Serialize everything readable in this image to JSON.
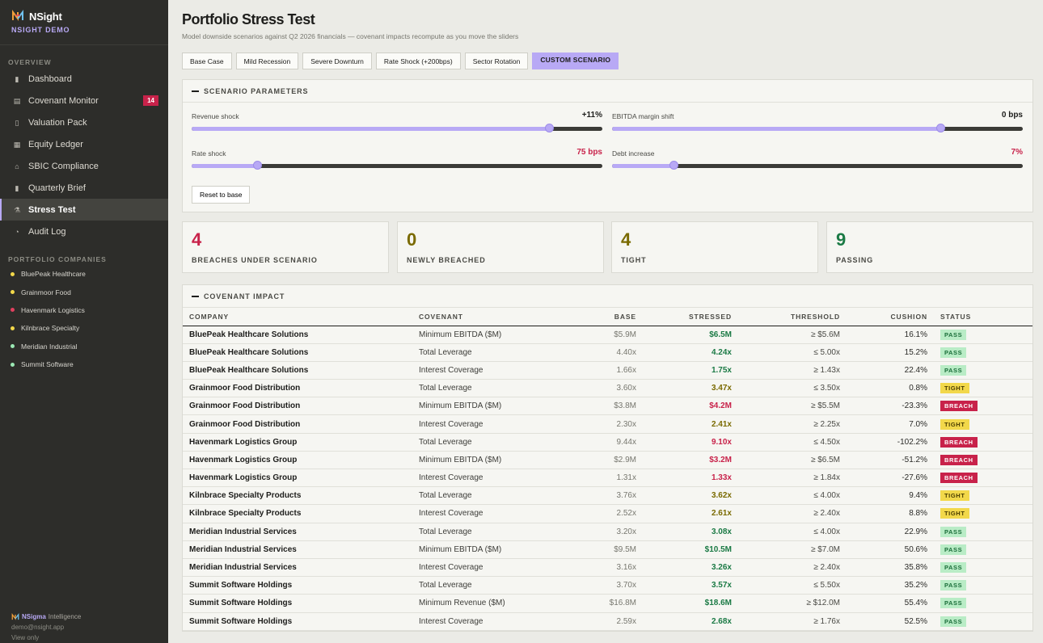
{
  "brand": {
    "name": "NSight",
    "sub": "NSIGHT DEMO"
  },
  "sidebar": {
    "overview_label": "OVERVIEW",
    "items": [
      {
        "label": "Dashboard",
        "icon": "chart-icon"
      },
      {
        "label": "Covenant Monitor",
        "icon": "document-icon",
        "badge": "14"
      },
      {
        "label": "Valuation Pack",
        "icon": "page-icon"
      },
      {
        "label": "Equity Ledger",
        "icon": "ledger-icon"
      },
      {
        "label": "SBIC Compliance",
        "icon": "bank-icon"
      },
      {
        "label": "Quarterly Brief",
        "icon": "book-icon"
      },
      {
        "label": "Stress Test",
        "icon": "flask-icon",
        "active": true
      },
      {
        "label": "Audit Log",
        "icon": "clock-icon"
      }
    ],
    "companies_label": "PORTFOLIO COMPANIES",
    "companies": [
      {
        "label": "BluePeak Healthcare",
        "color": "#f2d84a"
      },
      {
        "label": "Grainmoor Food",
        "color": "#f2d84a"
      },
      {
        "label": "Havenmark Logistics",
        "color": "#e0405e"
      },
      {
        "label": "Kilnbrace Specialty",
        "color": "#f2d84a"
      },
      {
        "label": "Meridian Industrial",
        "color": "#9be8b4"
      },
      {
        "label": "Summit Software",
        "color": "#9be8b4"
      }
    ],
    "footer": {
      "brand": "NSigma",
      "brand_rest": "Intelligence",
      "email": "demo@nsight.app",
      "mode": "View only"
    }
  },
  "header": {
    "title": "Portfolio Stress Test",
    "subtitle": "Model downside scenarios against Q2 2026 financials — covenant impacts recompute as you move the sliders"
  },
  "tabs": [
    "Base Case",
    "Mild Recession",
    "Severe Downturn",
    "Rate Shock (+200bps)",
    "Sector Rotation",
    "CUSTOM SCENARIO"
  ],
  "active_tab": 5,
  "params": {
    "title": "SCENARIO PARAMETERS",
    "sliders": [
      {
        "label": "Revenue shock",
        "value": "+11%",
        "fraction": 0.87,
        "value_color": "#1d1d1b"
      },
      {
        "label": "EBITDA margin shift",
        "value": "0 bps",
        "fraction": 0.8,
        "value_color": "#1d1d1b"
      },
      {
        "label": "Rate shock",
        "value": "75 bps",
        "fraction": 0.16,
        "value_color": "#c8224a"
      },
      {
        "label": "Debt increase",
        "value": "7%",
        "fraction": 0.15,
        "value_color": "#c8224a"
      }
    ],
    "reset_label": "Reset to base"
  },
  "stats": [
    {
      "value": "4",
      "label": "BREACHES UNDER SCENARIO",
      "color": "#c8224a"
    },
    {
      "value": "0",
      "label": "NEWLY BREACHED",
      "color": "#7a6a00"
    },
    {
      "value": "4",
      "label": "TIGHT",
      "color": "#7a6a00"
    },
    {
      "value": "9",
      "label": "PASSING",
      "color": "#1b7a45"
    }
  ],
  "impact": {
    "title": "COVENANT IMPACT",
    "columns": [
      "COMPANY",
      "COVENANT",
      "BASE",
      "STRESSED",
      "THRESHOLD",
      "CUSHION",
      "STATUS"
    ],
    "rows": [
      {
        "company": "BluePeak Healthcare Solutions",
        "covenant": "Minimum EBITDA ($M)",
        "base": "$5.9M",
        "stressed": "$6.5M",
        "threshold": "≥ $5.6M",
        "cushion": "16.1%",
        "status": "PASS"
      },
      {
        "company": "BluePeak Healthcare Solutions",
        "covenant": "Total Leverage",
        "base": "4.40x",
        "stressed": "4.24x",
        "threshold": "≤ 5.00x",
        "cushion": "15.2%",
        "status": "PASS"
      },
      {
        "company": "BluePeak Healthcare Solutions",
        "covenant": "Interest Coverage",
        "base": "1.66x",
        "stressed": "1.75x",
        "threshold": "≥ 1.43x",
        "cushion": "22.4%",
        "status": "PASS"
      },
      {
        "company": "Grainmoor Food Distribution",
        "covenant": "Total Leverage",
        "base": "3.60x",
        "stressed": "3.47x",
        "threshold": "≤ 3.50x",
        "cushion": "0.8%",
        "status": "TIGHT"
      },
      {
        "company": "Grainmoor Food Distribution",
        "covenant": "Minimum EBITDA ($M)",
        "base": "$3.8M",
        "stressed": "$4.2M",
        "threshold": "≥ $5.5M",
        "cushion": "-23.3%",
        "status": "BREACH"
      },
      {
        "company": "Grainmoor Food Distribution",
        "covenant": "Interest Coverage",
        "base": "2.30x",
        "stressed": "2.41x",
        "threshold": "≥ 2.25x",
        "cushion": "7.0%",
        "status": "TIGHT"
      },
      {
        "company": "Havenmark Logistics Group",
        "covenant": "Total Leverage",
        "base": "9.44x",
        "stressed": "9.10x",
        "threshold": "≤ 4.50x",
        "cushion": "-102.2%",
        "status": "BREACH"
      },
      {
        "company": "Havenmark Logistics Group",
        "covenant": "Minimum EBITDA ($M)",
        "base": "$2.9M",
        "stressed": "$3.2M",
        "threshold": "≥ $6.5M",
        "cushion": "-51.2%",
        "status": "BREACH"
      },
      {
        "company": "Havenmark Logistics Group",
        "covenant": "Interest Coverage",
        "base": "1.31x",
        "stressed": "1.33x",
        "threshold": "≥ 1.84x",
        "cushion": "-27.6%",
        "status": "BREACH"
      },
      {
        "company": "Kilnbrace Specialty Products",
        "covenant": "Total Leverage",
        "base": "3.76x",
        "stressed": "3.62x",
        "threshold": "≤ 4.00x",
        "cushion": "9.4%",
        "status": "TIGHT"
      },
      {
        "company": "Kilnbrace Specialty Products",
        "covenant": "Interest Coverage",
        "base": "2.52x",
        "stressed": "2.61x",
        "threshold": "≥ 2.40x",
        "cushion": "8.8%",
        "status": "TIGHT"
      },
      {
        "company": "Meridian Industrial Services",
        "covenant": "Total Leverage",
        "base": "3.20x",
        "stressed": "3.08x",
        "threshold": "≤ 4.00x",
        "cushion": "22.9%",
        "status": "PASS"
      },
      {
        "company": "Meridian Industrial Services",
        "covenant": "Minimum EBITDA ($M)",
        "base": "$9.5M",
        "stressed": "$10.5M",
        "threshold": "≥ $7.0M",
        "cushion": "50.6%",
        "status": "PASS"
      },
      {
        "company": "Meridian Industrial Services",
        "covenant": "Interest Coverage",
        "base": "3.16x",
        "stressed": "3.26x",
        "threshold": "≥ 2.40x",
        "cushion": "35.8%",
        "status": "PASS"
      },
      {
        "company": "Summit Software Holdings",
        "covenant": "Total Leverage",
        "base": "3.70x",
        "stressed": "3.57x",
        "threshold": "≤ 5.50x",
        "cushion": "35.2%",
        "status": "PASS"
      },
      {
        "company": "Summit Software Holdings",
        "covenant": "Minimum Revenue ($M)",
        "base": "$16.8M",
        "stressed": "$18.6M",
        "threshold": "≥ $12.0M",
        "cushion": "55.4%",
        "status": "PASS"
      },
      {
        "company": "Summit Software Holdings",
        "covenant": "Interest Coverage",
        "base": "2.59x",
        "stressed": "2.68x",
        "threshold": "≥ 1.76x",
        "cushion": "52.5%",
        "status": "PASS"
      }
    ]
  },
  "status_colors": {
    "PASS": "#1b7a45",
    "TIGHT": "#7a6a00",
    "BREACH": "#c8224a"
  }
}
